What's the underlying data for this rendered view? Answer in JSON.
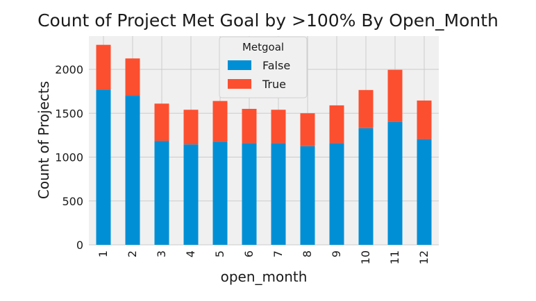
{
  "chart_data": {
    "type": "bar",
    "stacked": true,
    "title": "Count of Project Met Goal by >100% By Open_Month",
    "xlabel": "open_month",
    "ylabel": "Count of Projects",
    "categories": [
      "1",
      "2",
      "3",
      "4",
      "5",
      "6",
      "7",
      "8",
      "9",
      "10",
      "11",
      "12"
    ],
    "series": [
      {
        "name": "False",
        "color": "#008fd5",
        "values": [
          1770,
          1700,
          1185,
          1145,
          1175,
          1160,
          1160,
          1125,
          1160,
          1330,
          1400,
          1205
        ]
      },
      {
        "name": "True",
        "color": "#fc4f30",
        "values": [
          510,
          425,
          425,
          395,
          465,
          390,
          380,
          375,
          430,
          435,
          595,
          440
        ]
      }
    ],
    "ylim": [
      0,
      2380
    ],
    "yticks": [
      0,
      500,
      1000,
      1500,
      2000
    ],
    "legend": {
      "title": "Metgoal",
      "position": "top-center"
    },
    "grid": true,
    "background_color": "#f0f0f0"
  }
}
